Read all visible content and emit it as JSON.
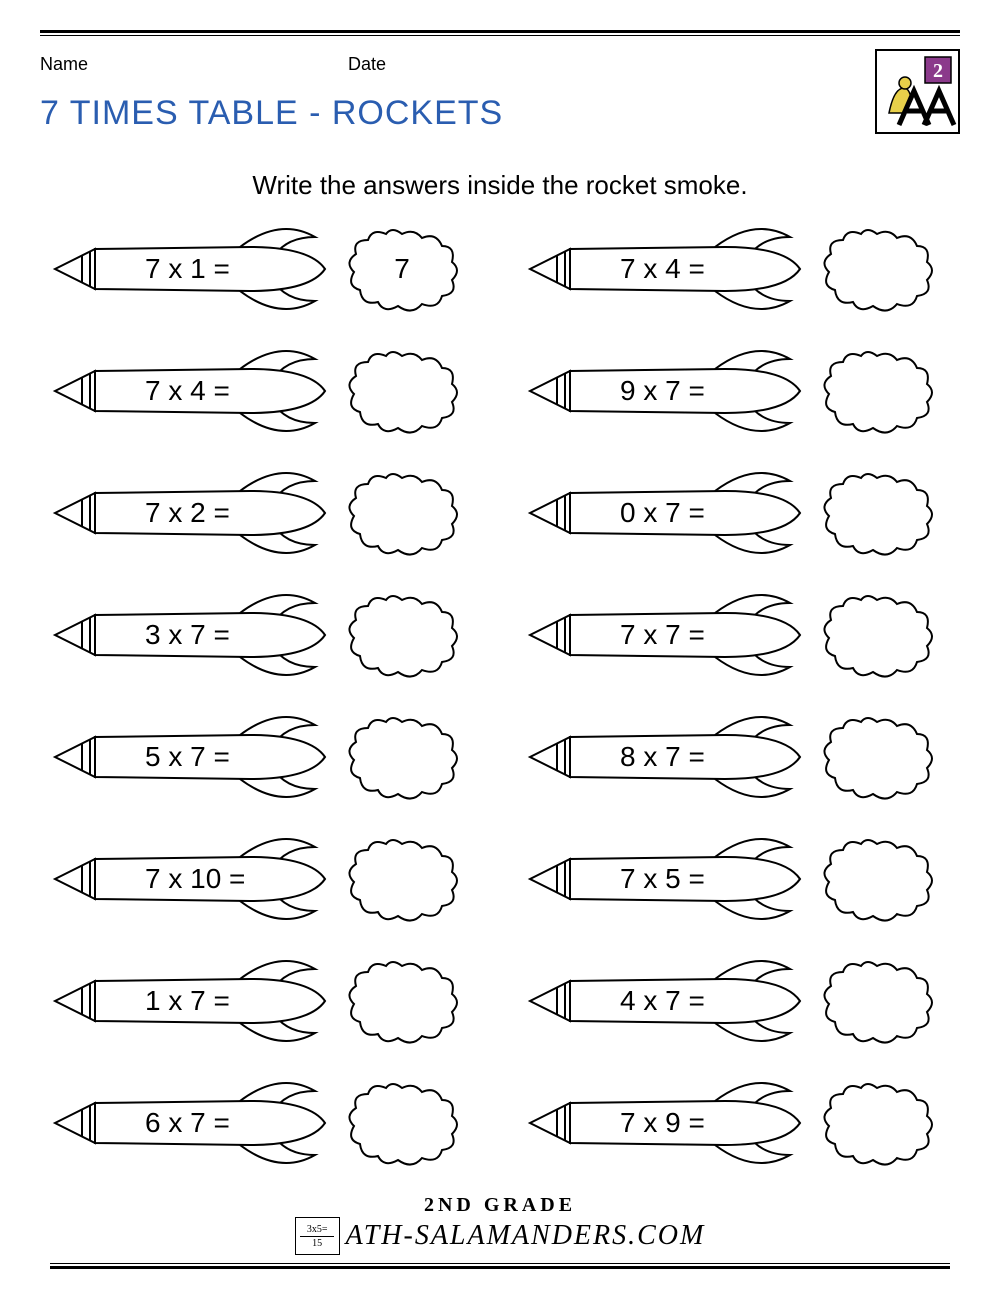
{
  "header": {
    "name_label": "Name",
    "date_label": "Date",
    "title": "7 TIMES TABLE - ROCKETS",
    "title_color": "#2a5db0",
    "grade_badge": "2"
  },
  "instruction": "Write the answers inside the rocket smoke.",
  "style": {
    "stroke_color": "#000000",
    "stroke_width": 2,
    "problem_fontsize": 28,
    "background": "#ffffff"
  },
  "columns": [
    [
      {
        "problem": "7 x 1 =",
        "answer": "7"
      },
      {
        "problem": "7 x 4 =",
        "answer": ""
      },
      {
        "problem": "7 x 2 =",
        "answer": ""
      },
      {
        "problem": "3 x 7 =",
        "answer": ""
      },
      {
        "problem": "5 x 7 =",
        "answer": ""
      },
      {
        "problem": "7 x 10 =",
        "answer": ""
      },
      {
        "problem": "1 x 7 =",
        "answer": ""
      },
      {
        "problem": "6 x 7 =",
        "answer": ""
      }
    ],
    [
      {
        "problem": "7 x 4 =",
        "answer": ""
      },
      {
        "problem": "9 x 7 =",
        "answer": ""
      },
      {
        "problem": "0 x 7 =",
        "answer": ""
      },
      {
        "problem": "7 x 7 =",
        "answer": ""
      },
      {
        "problem": "8 x 7 =",
        "answer": ""
      },
      {
        "problem": "7 x 5 =",
        "answer": ""
      },
      {
        "problem": "4 x 7 =",
        "answer": ""
      },
      {
        "problem": "7 x 9 =",
        "answer": ""
      }
    ]
  ],
  "footer": {
    "grade_line": "2ND GRADE",
    "site": "ATH-SALAMANDERS.COM",
    "card_top": "3x5=",
    "card_bottom": "15"
  }
}
